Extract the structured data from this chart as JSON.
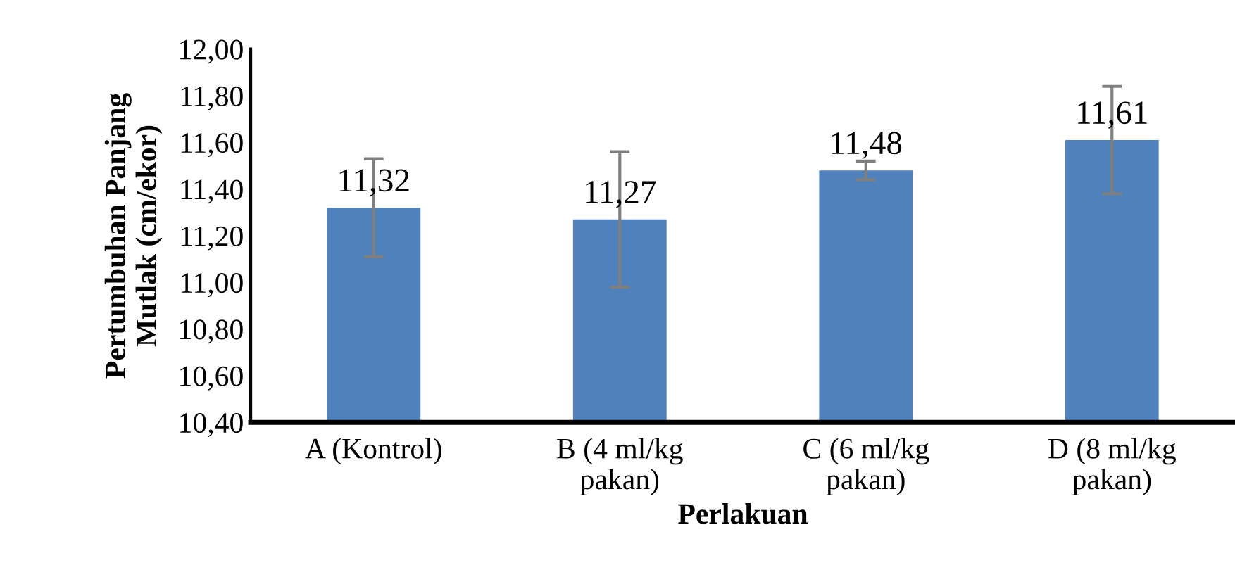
{
  "chart_data": {
    "type": "bar",
    "xlabel": "Perlakuan",
    "ylabel": "Pertumbuhan Panjang\nMutlak (cm/ekor)",
    "categories": [
      "A (Kontrol)",
      "B (4 ml/kg\npakan)",
      "C (6 ml/kg\npakan)",
      "D (8 ml/kg\npakan)"
    ],
    "values": [
      11.32,
      11.27,
      11.48,
      11.61
    ],
    "errors": [
      0.21,
      0.29,
      0.04,
      0.23
    ],
    "value_labels": [
      "11,32",
      "11,27",
      "11,48",
      "11,61"
    ],
    "color": "#4f81bd",
    "ylim": [
      10.4,
      12.0
    ],
    "yticks": [
      {
        "value": 10.4,
        "label": "10,40"
      },
      {
        "value": 10.6,
        "label": "10,60"
      },
      {
        "value": 10.8,
        "label": "10,80"
      },
      {
        "value": 11.0,
        "label": "11,00"
      },
      {
        "value": 11.2,
        "label": "11,20"
      },
      {
        "value": 11.4,
        "label": "11,40"
      },
      {
        "value": 11.6,
        "label": "11,60"
      },
      {
        "value": 11.8,
        "label": "11,80"
      },
      {
        "value": 12.0,
        "label": "12,00"
      }
    ],
    "grid": false,
    "legend": false
  }
}
